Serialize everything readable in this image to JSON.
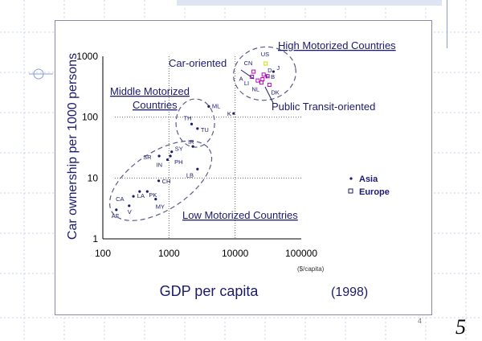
{
  "slide": {
    "page_number_small": "4",
    "page_number_large": "5"
  },
  "legend": [
    {
      "label": "Asia",
      "marker": "dot"
    },
    {
      "label": "Europe",
      "marker": "square"
    }
  ],
  "colors": {
    "ink": "#1a1a6e",
    "grid": "#6a6a6a",
    "accent_yellow": "#d8d800",
    "accent_magenta": "#c000c0"
  },
  "chart_data": {
    "type": "scatter",
    "title": "",
    "xlabel": "GDP per capita",
    "x_unit": "($/capita)",
    "ylabel": "Car ownership per 1000 persons",
    "year_note": "(1998)",
    "xscale": "log",
    "yscale": "log",
    "xlim": [
      100,
      100000
    ],
    "ylim": [
      1,
      1000
    ],
    "x_ticks": [
      "100",
      "1000",
      "10000",
      "100000"
    ],
    "y_ticks": [
      "1",
      "10",
      "100",
      "1000"
    ],
    "grid": "major gridlines at 1000 and 10000 GDP and 10 and 100 cars (dotted)",
    "legend_position": "right",
    "points": [
      {
        "label": "AF",
        "x": 160,
        "y": 3,
        "group": "Asia"
      },
      {
        "label": "V",
        "x": 250,
        "y": 3.5,
        "group": "Asia"
      },
      {
        "label": "CA",
        "x": 290,
        "y": 5,
        "group": "Asia"
      },
      {
        "label": "LA",
        "x": 360,
        "y": 6,
        "group": "Asia"
      },
      {
        "label": "PK",
        "x": 470,
        "y": 6,
        "group": "Asia"
      },
      {
        "label": "MY",
        "x": 630,
        "y": 4.5,
        "group": "Asia"
      },
      {
        "label": "CH",
        "x": 700,
        "y": 9,
        "group": "Asia"
      },
      {
        "label": "SR",
        "x": 710,
        "y": 23,
        "group": "Asia"
      },
      {
        "label": "IN",
        "x": 950,
        "y": 20,
        "group": "Asia"
      },
      {
        "label": "PH",
        "x": 1050,
        "y": 23,
        "group": "Asia"
      },
      {
        "label": "SY",
        "x": 1100,
        "y": 27,
        "group": "Asia"
      },
      {
        "label": "LB",
        "x": 2700,
        "y": 14,
        "group": "Asia"
      },
      {
        "label": "IR",
        "x": 2300,
        "y": 33,
        "group": "Asia"
      },
      {
        "label": "TH",
        "x": 2200,
        "y": 77,
        "group": "Asia"
      },
      {
        "label": "TU",
        "x": 2700,
        "y": 65,
        "group": "Asia"
      },
      {
        "label": "ML",
        "x": 4000,
        "y": 150,
        "group": "Asia"
      },
      {
        "label": "K",
        "x": 9500,
        "y": 115,
        "group": "Asia"
      },
      {
        "label": "CN",
        "x": 19000,
        "y": 560,
        "group": "Europe"
      },
      {
        "label": "US",
        "x": 29000,
        "y": 760,
        "group": "Europe"
      },
      {
        "label": "A",
        "x": 18000,
        "y": 460,
        "group": "Europe"
      },
      {
        "label": "LI",
        "x": 22000,
        "y": 400,
        "group": "Europe"
      },
      {
        "label": "F",
        "x": 26000,
        "y": 420,
        "group": "Europe"
      },
      {
        "label": "D",
        "x": 27000,
        "y": 500,
        "group": "Europe"
      },
      {
        "label": "J",
        "x": 38000,
        "y": 560,
        "group": "Asia"
      },
      {
        "label": "B",
        "x": 31000,
        "y": 470,
        "group": "Europe"
      },
      {
        "label": "NL",
        "x": 25000,
        "y": 370,
        "group": "Europe"
      },
      {
        "label": "DK",
        "x": 33000,
        "y": 340,
        "group": "Europe"
      }
    ],
    "annotations": [
      "High Motorized Countries",
      "Car-oriented",
      "Public Transit-oriented",
      "Middle Motorized Countries",
      "Low Motorized Countries"
    ],
    "clusters": [
      {
        "name": "Low Motorized Countries",
        "cx": 750,
        "cy": 9,
        "shape": "ellipse"
      },
      {
        "name": "Middle Motorized Countries",
        "cx": 2500,
        "cy": 80,
        "shape": "ellipse"
      },
      {
        "name": "High Motorized Countries",
        "cx": 28000,
        "cy": 520,
        "shape": "ellipse"
      }
    ]
  }
}
